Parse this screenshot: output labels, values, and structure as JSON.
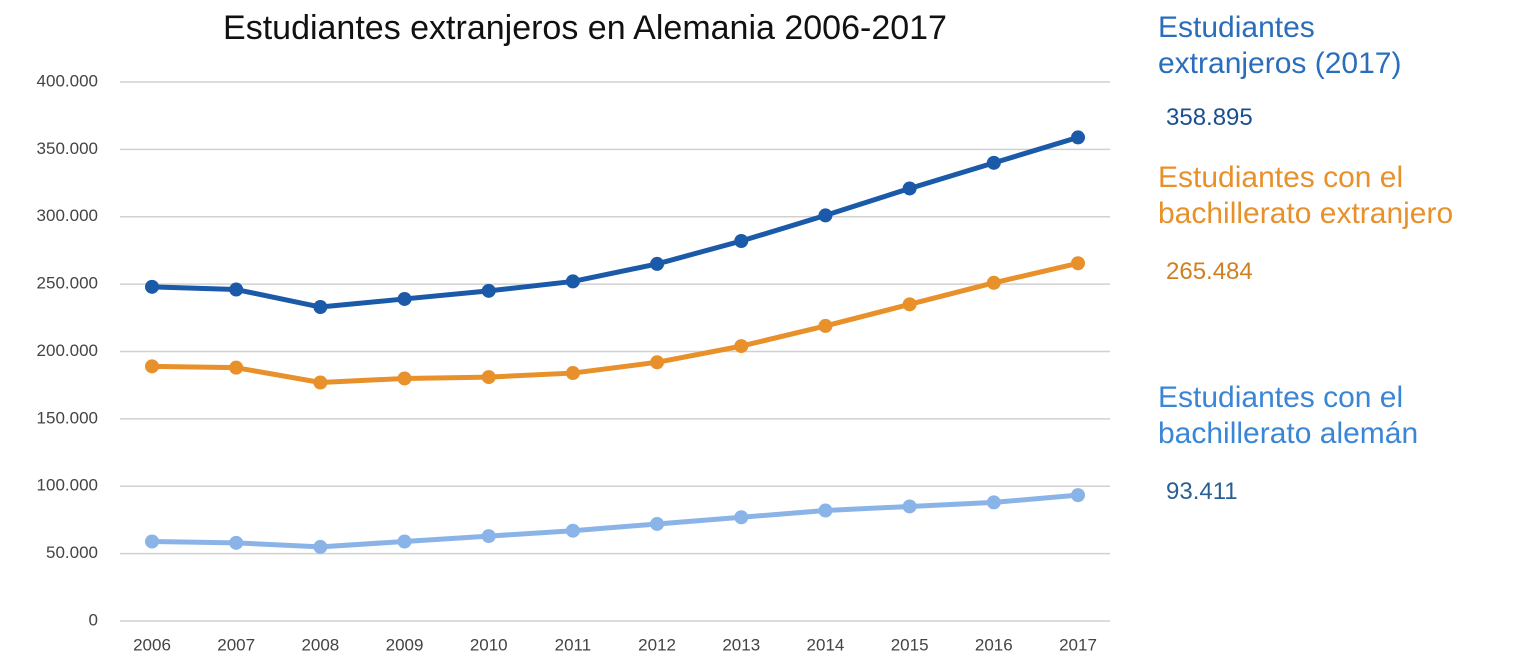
{
  "chart_data": {
    "type": "line",
    "title": "Estudiantes extranjeros en Alemania 2006-2017",
    "categories": [
      "2006",
      "2007",
      "2008",
      "2009",
      "2010",
      "2011",
      "2012",
      "2013",
      "2014",
      "2015",
      "2016",
      "2017"
    ],
    "series": [
      {
        "name": "Estudiantes extranjeros (2017)",
        "color": "#1a5aa8",
        "values": [
          248000,
          246000,
          233000,
          239000,
          245000,
          252000,
          265000,
          282000,
          301000,
          321000,
          340000,
          358895
        ],
        "value_labels": [
          null,
          null,
          null,
          null,
          null,
          null,
          null,
          null,
          null,
          null,
          null,
          "358.895"
        ]
      },
      {
        "name": "Estudiantes con el bachillerato extranjero",
        "color": "#e8902a",
        "values": [
          189000,
          188000,
          177000,
          180000,
          181000,
          184000,
          192000,
          204000,
          219000,
          235000,
          251000,
          265484
        ],
        "value_labels": [
          null,
          null,
          null,
          null,
          null,
          null,
          null,
          null,
          null,
          null,
          null,
          "265.484"
        ]
      },
      {
        "name": "Estudiantes con el bachillerato alemán",
        "color": "#8ab4e8",
        "values": [
          59000,
          58000,
          55000,
          59000,
          63000,
          67000,
          72000,
          77000,
          82000,
          85000,
          88000,
          93411
        ],
        "value_labels": [
          null,
          null,
          null,
          null,
          null,
          null,
          null,
          null,
          null,
          null,
          null,
          "93.411"
        ]
      }
    ],
    "ylim": [
      0,
      400000
    ],
    "yticks": [
      0,
      {
        "value": 50000,
        "label": "50.000"
      },
      {
        "value": 100000,
        "label": "100.000"
      },
      {
        "value": 150000,
        "label": "150.000"
      },
      {
        "value": 200000,
        "label": "200.000"
      },
      {
        "value": 250000,
        "label": "250.000"
      },
      {
        "value": 300000,
        "label": "300.000"
      },
      {
        "value": 350000,
        "label": "350.000"
      },
      {
        "value": 400000,
        "label": "400.000"
      }
    ],
    "grid": true
  }
}
